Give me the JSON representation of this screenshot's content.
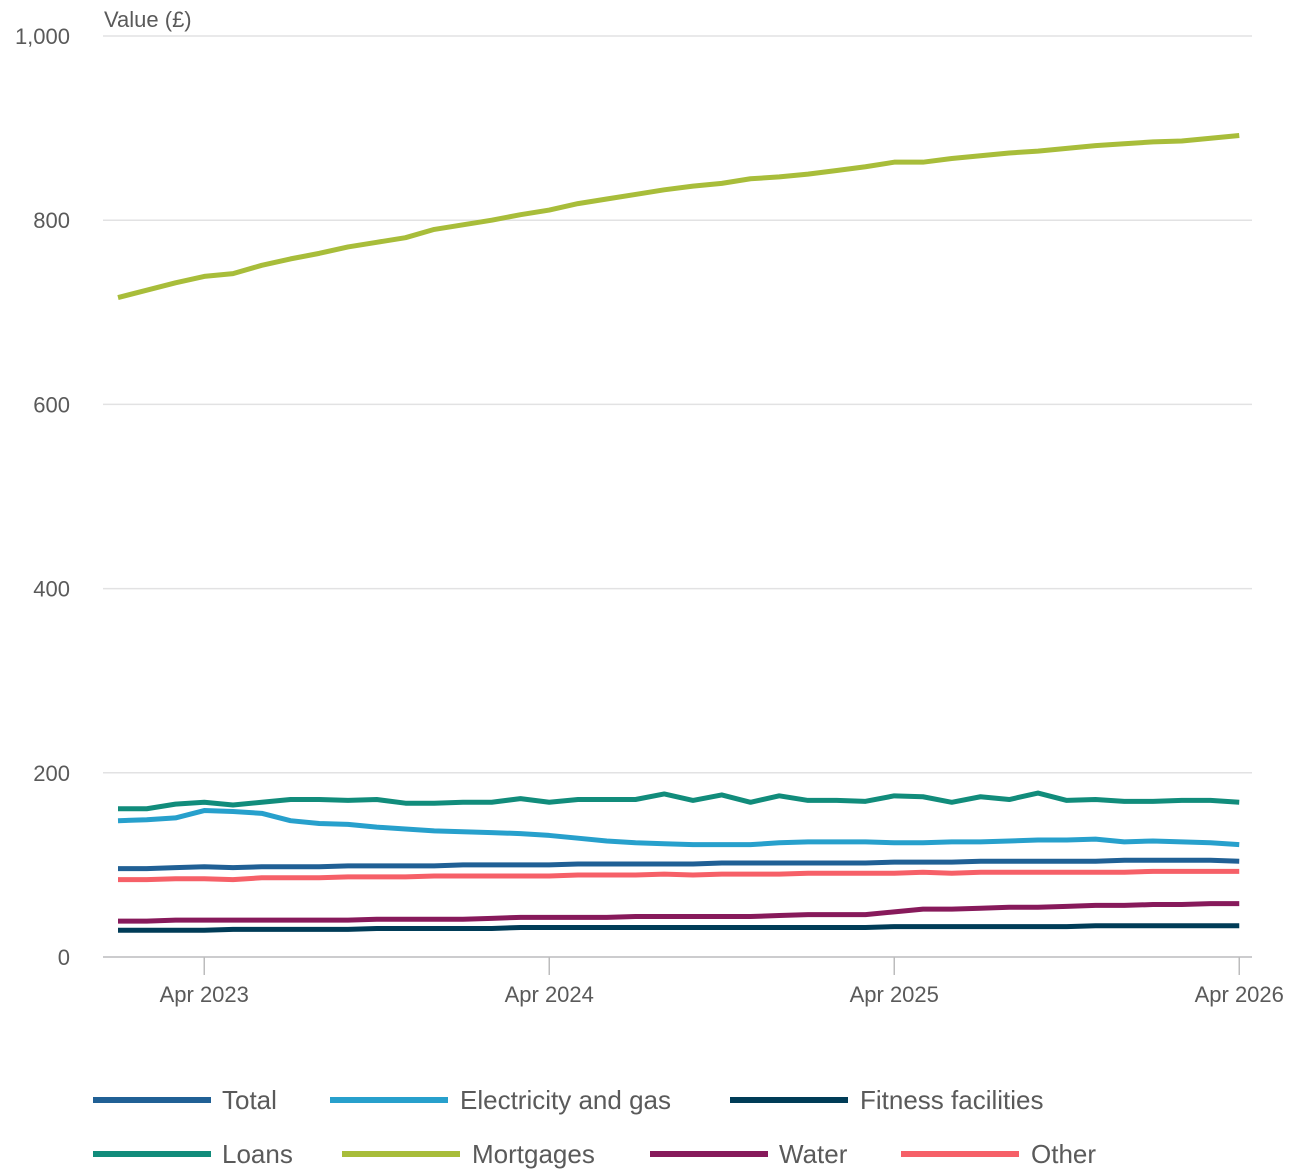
{
  "chart_data": {
    "type": "line",
    "ylabel": "Value (£)",
    "ylim": [
      0,
      1000
    ],
    "yticks": [
      0,
      200,
      400,
      600,
      800,
      1000
    ],
    "ytick_labels": [
      "0",
      "200",
      "400",
      "600",
      "800",
      "1,000"
    ],
    "x": [
      "Jan 2023",
      "Feb 2023",
      "Mar 2023",
      "Apr 2023",
      "May 2023",
      "Jun 2023",
      "Jul 2023",
      "Aug 2023",
      "Sep 2023",
      "Oct 2023",
      "Nov 2023",
      "Dec 2023",
      "Jan 2024",
      "Feb 2024",
      "Mar 2024",
      "Apr 2024",
      "May 2024",
      "Jun 2024",
      "Jul 2024",
      "Aug 2024",
      "Sep 2024",
      "Oct 2024",
      "Nov 2024",
      "Dec 2024",
      "Jan 2025",
      "Feb 2025",
      "Mar 2025",
      "Apr 2025",
      "May 2025",
      "Jun 2025",
      "Jul 2025",
      "Aug 2025",
      "Sep 2025",
      "Oct 2025",
      "Nov 2025",
      "Dec 2025",
      "Jan 2026",
      "Feb 2026",
      "Mar 2026",
      "Apr 2026"
    ],
    "xticks": [
      "Apr 2023",
      "Apr 2024",
      "Apr 2025",
      "Apr 2026"
    ],
    "grid": true,
    "legend_position": "bottom",
    "series": [
      {
        "name": "Total",
        "color": "#206095",
        "values": [
          96,
          96,
          97,
          98,
          97,
          98,
          98,
          98,
          99,
          99,
          99,
          99,
          100,
          100,
          100,
          100,
          101,
          101,
          101,
          101,
          101,
          102,
          102,
          102,
          102,
          102,
          102,
          103,
          103,
          103,
          104,
          104,
          104,
          104,
          104,
          105,
          105,
          105,
          105,
          104
        ]
      },
      {
        "name": "Electricity and gas",
        "color": "#27a0cc",
        "values": [
          148,
          149,
          151,
          159,
          158,
          156,
          148,
          145,
          144,
          141,
          139,
          137,
          136,
          135,
          134,
          132,
          129,
          126,
          124,
          123,
          122,
          122,
          122,
          124,
          125,
          125,
          125,
          124,
          124,
          125,
          125,
          126,
          127,
          127,
          128,
          125,
          126,
          125,
          124,
          122
        ]
      },
      {
        "name": "Fitness facilities",
        "color": "#003c57",
        "values": [
          29,
          29,
          29,
          29,
          30,
          30,
          30,
          30,
          30,
          31,
          31,
          31,
          31,
          31,
          32,
          32,
          32,
          32,
          32,
          32,
          32,
          32,
          32,
          32,
          32,
          32,
          32,
          33,
          33,
          33,
          33,
          33,
          33,
          33,
          34,
          34,
          34,
          34,
          34,
          34
        ]
      },
      {
        "name": "Loans",
        "color": "#118c7b",
        "values": [
          161,
          161,
          166,
          168,
          165,
          168,
          171,
          171,
          170,
          171,
          167,
          167,
          168,
          168,
          172,
          168,
          171,
          171,
          171,
          177,
          170,
          176,
          168,
          175,
          170,
          170,
          169,
          175,
          174,
          168,
          174,
          171,
          178,
          170,
          171,
          169,
          169,
          170,
          170,
          168
        ]
      },
      {
        "name": "Mortgages",
        "color": "#a8bd3a",
        "values": [
          716,
          724,
          732,
          739,
          742,
          751,
          758,
          764,
          771,
          776,
          781,
          790,
          795,
          800,
          806,
          811,
          818,
          823,
          828,
          833,
          837,
          840,
          845,
          847,
          850,
          854,
          858,
          863,
          863,
          867,
          870,
          873,
          875,
          878,
          881,
          883,
          885,
          886,
          889,
          892
        ]
      },
      {
        "name": "Water",
        "color": "#871a5b",
        "values": [
          39,
          39,
          40,
          40,
          40,
          40,
          40,
          40,
          40,
          41,
          41,
          41,
          41,
          42,
          43,
          43,
          43,
          43,
          44,
          44,
          44,
          44,
          44,
          45,
          46,
          46,
          46,
          49,
          52,
          52,
          53,
          54,
          54,
          55,
          56,
          56,
          57,
          57,
          58,
          58
        ]
      },
      {
        "name": "Other",
        "color": "#f66068",
        "values": [
          84,
          84,
          85,
          85,
          84,
          86,
          86,
          86,
          87,
          87,
          87,
          88,
          88,
          88,
          88,
          88,
          89,
          89,
          89,
          90,
          89,
          90,
          90,
          90,
          91,
          91,
          91,
          91,
          92,
          91,
          92,
          92,
          92,
          92,
          92,
          92,
          93,
          93,
          93,
          93
        ]
      }
    ]
  }
}
